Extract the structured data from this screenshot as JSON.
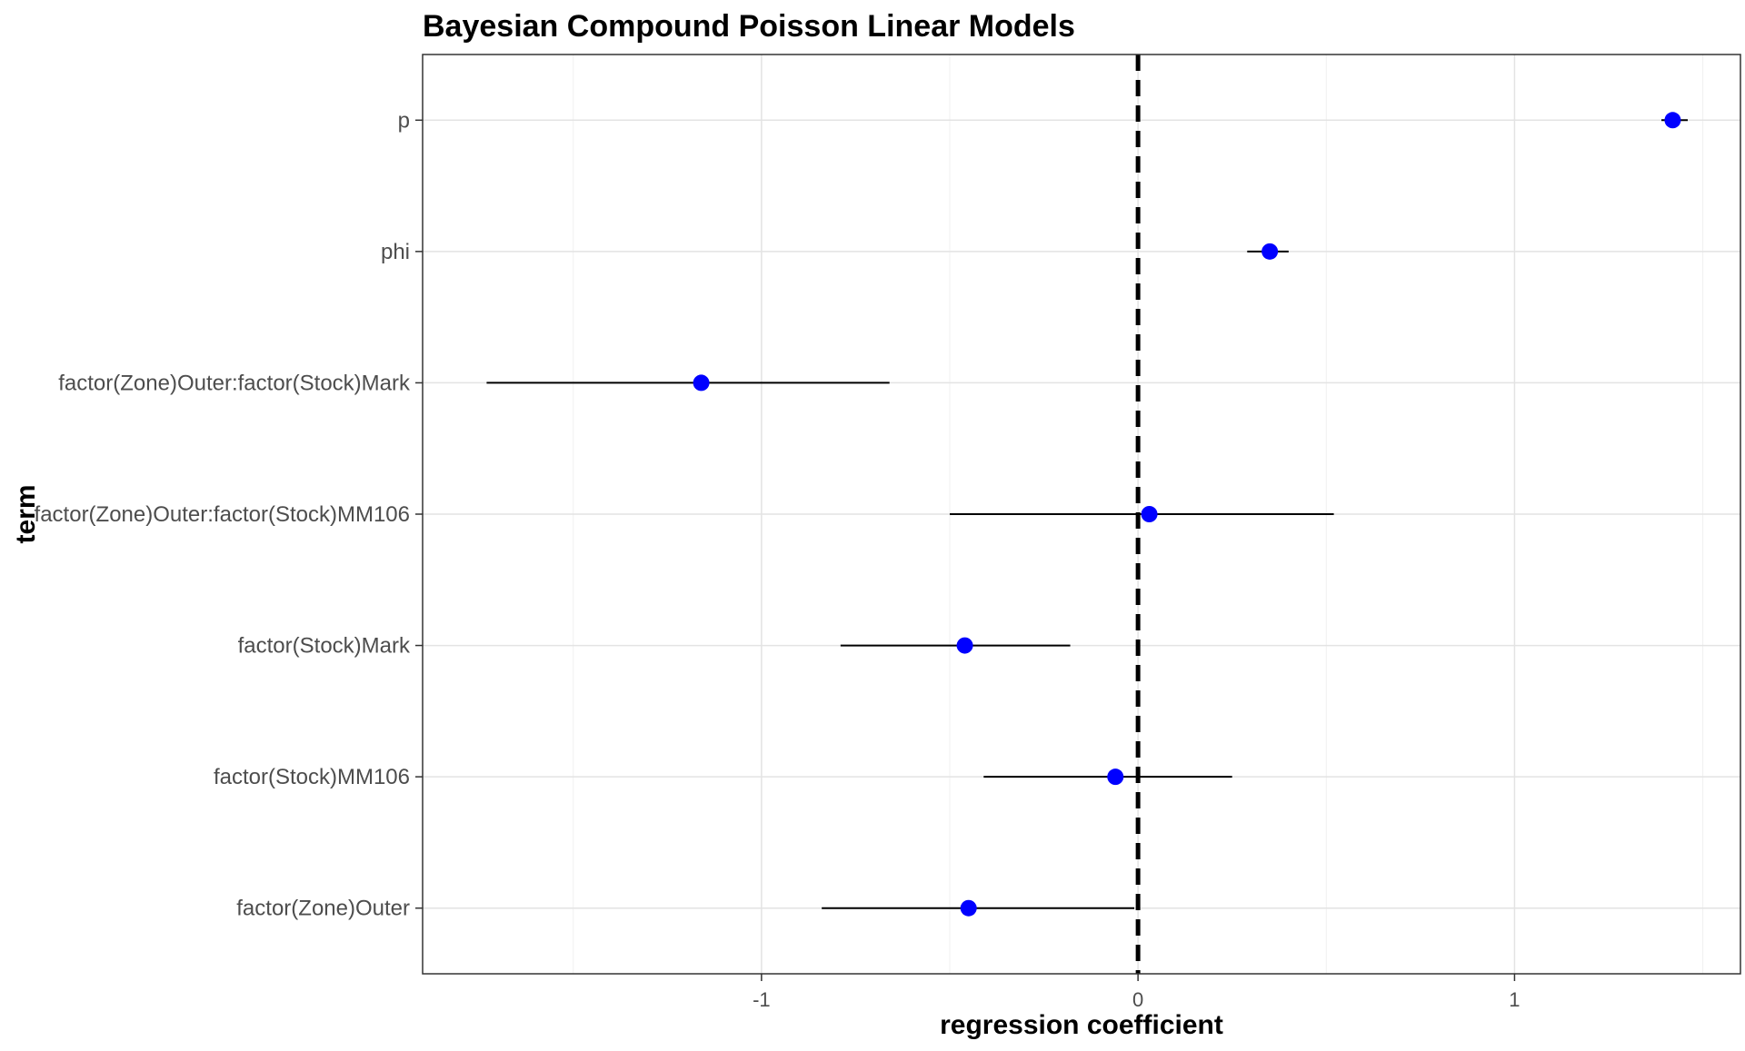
{
  "chart_data": {
    "type": "scatter",
    "subtype": "coefficient-plot",
    "title": "Bayesian Compound Poisson Linear Models",
    "xlabel": "regression coefficient",
    "ylabel": "term",
    "xlim": [
      -1.9,
      1.6
    ],
    "x_ticks": [
      -1,
      0,
      1
    ],
    "x_tick_labels": [
      "-1",
      "0",
      "1"
    ],
    "grid": true,
    "theme": "bw",
    "reference_line": {
      "x": 0,
      "style": "dashed",
      "color": "#000000"
    },
    "point_color": "#0000ff",
    "interval_color": "#000000",
    "terms": [
      {
        "term": "p",
        "estimate": 1.42,
        "low": 1.39,
        "high": 1.46
      },
      {
        "term": "phi",
        "estimate": 0.35,
        "low": 0.29,
        "high": 0.4
      },
      {
        "term": "factor(Zone)Outer:factor(Stock)Mark",
        "estimate": -1.16,
        "low": -1.73,
        "high": -0.66
      },
      {
        "term": "factor(Zone)Outer:factor(Stock)MM106",
        "estimate": 0.03,
        "low": -0.5,
        "high": 0.52
      },
      {
        "term": "factor(Stock)Mark",
        "estimate": -0.46,
        "low": -0.79,
        "high": -0.18
      },
      {
        "term": "factor(Stock)MM106",
        "estimate": -0.06,
        "low": -0.41,
        "high": 0.25
      },
      {
        "term": "factor(Zone)Outer",
        "estimate": -0.45,
        "low": -0.84,
        "high": -0.01
      }
    ]
  }
}
